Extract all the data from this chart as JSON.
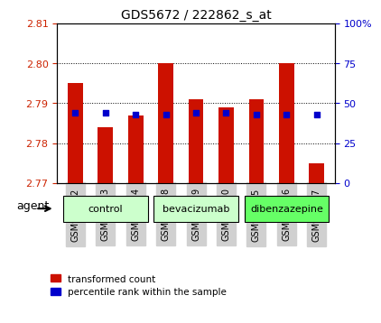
{
  "title": "GDS5672 / 222862_s_at",
  "samples": [
    "GSM958322",
    "GSM958323",
    "GSM958324",
    "GSM958328",
    "GSM958329",
    "GSM958330",
    "GSM958325",
    "GSM958326",
    "GSM958327"
  ],
  "groups": [
    {
      "name": "control",
      "color": "#ccffcc",
      "indices": [
        0,
        1,
        2
      ]
    },
    {
      "name": "bevacizumab",
      "color": "#ccffcc",
      "indices": [
        3,
        4,
        5
      ]
    },
    {
      "name": "dibenzazepine",
      "color": "#66ff66",
      "indices": [
        6,
        7,
        8
      ]
    }
  ],
  "bar_values": [
    2.795,
    2.784,
    2.787,
    2.8,
    2.791,
    2.789,
    2.791,
    2.8,
    2.775
  ],
  "bar_bottom": 2.77,
  "blue_values": [
    44,
    44,
    43,
    43,
    44,
    44,
    43,
    43,
    43
  ],
  "left_ylim": [
    2.77,
    2.81
  ],
  "right_ylim": [
    0,
    100
  ],
  "left_yticks": [
    2.77,
    2.78,
    2.79,
    2.8,
    2.81
  ],
  "right_yticks": [
    0,
    25,
    50,
    75,
    100
  ],
  "right_yticklabels": [
    "0",
    "25",
    "50",
    "75",
    "100%"
  ],
  "bar_color": "#cc1100",
  "blue_color": "#0000cc",
  "grid_color": "#000000",
  "bg_color": "#ffffff",
  "left_axis_color": "#cc2200",
  "right_axis_color": "#0000cc",
  "legend_red": "transformed count",
  "legend_blue": "percentile rank within the sample",
  "agent_label": "agent",
  "group_sep_color": "#000000"
}
